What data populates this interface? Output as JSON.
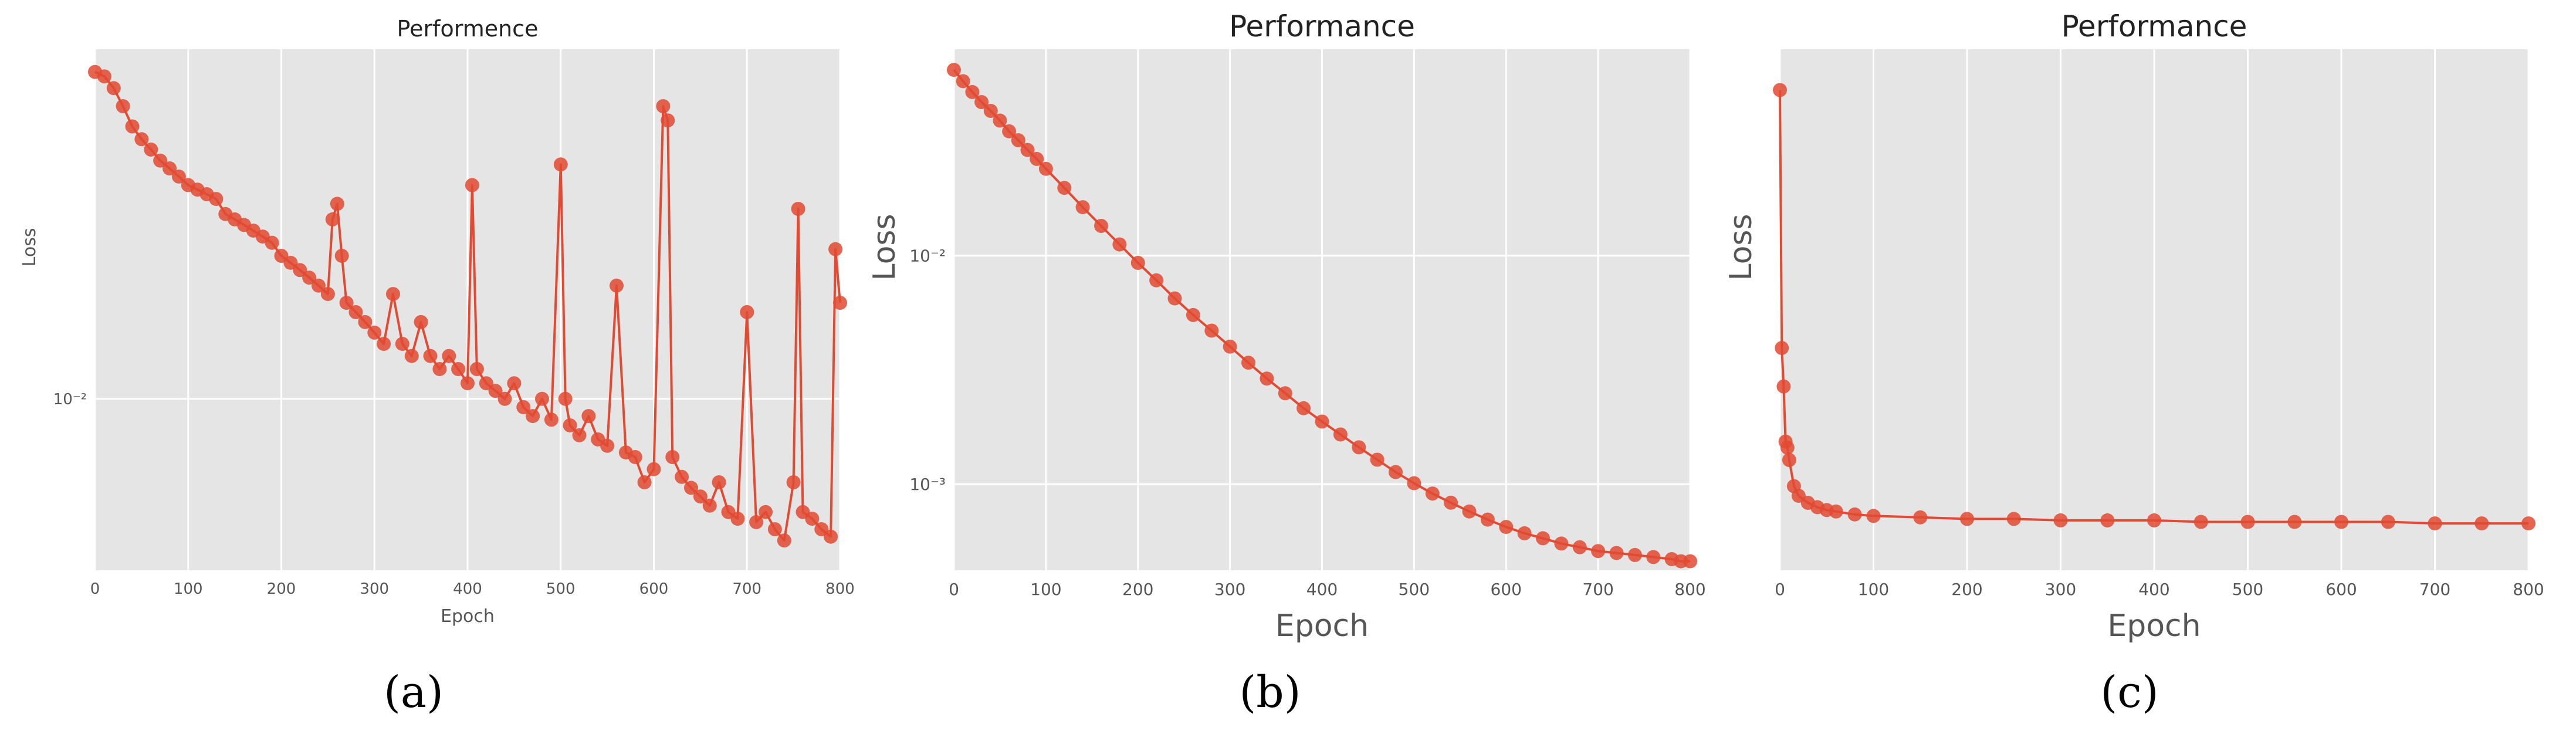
{
  "colors": {
    "series": "#e24a33",
    "plot_background": "#e5e5e5",
    "grid": "#ffffff"
  },
  "chart_data": [
    {
      "type": "line",
      "panel_label": "(a)",
      "title": "Performence",
      "xlabel": "Epoch",
      "ylabel": "Loss",
      "xlim": [
        0,
        800
      ],
      "ylim": [
        0.0035,
        0.085
      ],
      "yscale": "log",
      "grid": true,
      "x_ticks": [
        0,
        100,
        200,
        300,
        400,
        500,
        600,
        700,
        800
      ],
      "y_ticks": [
        {
          "value": 0.01,
          "label": "10⁻²"
        }
      ],
      "marker": "circle",
      "series": [
        {
          "x": [
            0,
            10,
            20,
            30,
            40,
            50,
            60,
            70,
            80,
            90,
            100,
            110,
            120,
            130,
            140,
            150,
            160,
            170,
            180,
            190,
            200,
            210,
            220,
            230,
            240,
            250,
            255,
            260,
            265,
            270,
            280,
            290,
            300,
            310,
            320,
            330,
            340,
            350,
            360,
            370,
            380,
            390,
            400,
            405,
            410,
            420,
            430,
            440,
            450,
            460,
            470,
            480,
            490,
            500,
            505,
            510,
            520,
            530,
            540,
            550,
            560,
            570,
            580,
            590,
            600,
            610,
            615,
            620,
            630,
            640,
            650,
            660,
            670,
            680,
            690,
            700,
            710,
            720,
            730,
            740,
            750,
            755,
            760,
            770,
            780,
            790,
            795,
            800
          ],
          "y": [
            0.074,
            0.072,
            0.067,
            0.06,
            0.053,
            0.049,
            0.046,
            0.043,
            0.041,
            0.039,
            0.037,
            0.036,
            0.035,
            0.034,
            0.031,
            0.03,
            0.029,
            0.028,
            0.027,
            0.026,
            0.024,
            0.023,
            0.022,
            0.021,
            0.02,
            0.019,
            0.03,
            0.033,
            0.024,
            0.018,
            0.017,
            0.016,
            0.015,
            0.014,
            0.019,
            0.014,
            0.013,
            0.016,
            0.013,
            0.012,
            0.013,
            0.012,
            0.011,
            0.037,
            0.012,
            0.011,
            0.0105,
            0.01,
            0.011,
            0.0095,
            0.009,
            0.01,
            0.0088,
            0.042,
            0.01,
            0.0085,
            0.008,
            0.009,
            0.0078,
            0.0075,
            0.02,
            0.0072,
            0.007,
            0.006,
            0.0065,
            0.06,
            0.055,
            0.007,
            0.0062,
            0.0058,
            0.0055,
            0.0052,
            0.006,
            0.005,
            0.0048,
            0.017,
            0.0047,
            0.005,
            0.0045,
            0.0042,
            0.006,
            0.032,
            0.005,
            0.0048,
            0.0045,
            0.0043,
            0.025,
            0.018
          ]
        }
      ]
    },
    {
      "type": "line",
      "panel_label": "(b)",
      "title": "Performance",
      "xlabel": "Epoch",
      "ylabel": "Loss",
      "xlim": [
        0,
        800
      ],
      "ylim": [
        0.00042,
        0.08
      ],
      "yscale": "log",
      "grid": true,
      "x_ticks": [
        0,
        100,
        200,
        300,
        400,
        500,
        600,
        700,
        800
      ],
      "y_ticks": [
        {
          "value": 0.01,
          "label": "10⁻²"
        },
        {
          "value": 0.001,
          "label": "10⁻³"
        }
      ],
      "marker": "circle",
      "series": [
        {
          "x": [
            0,
            10,
            20,
            30,
            40,
            50,
            60,
            70,
            80,
            90,
            100,
            120,
            140,
            160,
            180,
            200,
            220,
            240,
            260,
            280,
            300,
            320,
            340,
            360,
            380,
            400,
            420,
            440,
            460,
            480,
            500,
            520,
            540,
            560,
            580,
            600,
            620,
            640,
            660,
            680,
            700,
            720,
            740,
            760,
            780,
            790,
            800
          ],
          "y": [
            0.065,
            0.058,
            0.052,
            0.047,
            0.043,
            0.039,
            0.035,
            0.032,
            0.029,
            0.0265,
            0.024,
            0.0198,
            0.0163,
            0.0135,
            0.0112,
            0.0093,
            0.0078,
            0.0065,
            0.0055,
            0.0047,
            0.004,
            0.0034,
            0.0029,
            0.0025,
            0.00215,
            0.00188,
            0.00165,
            0.00145,
            0.00128,
            0.00113,
            0.00101,
            0.00091,
            0.00083,
            0.00076,
            0.0007,
            0.00065,
            0.00061,
            0.00058,
            0.00055,
            0.00053,
            0.00051,
            0.0005,
            0.00049,
            0.00048,
            0.00047,
            0.00046,
            0.00046
          ]
        }
      ]
    },
    {
      "type": "line",
      "panel_label": "(c)",
      "title": "Performance",
      "xlabel": "Epoch",
      "ylabel": "Loss",
      "xlim": [
        0,
        800
      ],
      "ylim": [
        0.02,
        0.09
      ],
      "yscale": "log",
      "grid": true,
      "x_ticks": [
        0,
        100,
        200,
        300,
        400,
        500,
        600,
        700,
        800
      ],
      "y_ticks": [],
      "marker": "circle",
      "series": [
        {
          "x": [
            0,
            2,
            4,
            6,
            8,
            10,
            15,
            20,
            30,
            40,
            50,
            60,
            80,
            100,
            150,
            200,
            250,
            300,
            350,
            400,
            450,
            500,
            550,
            600,
            650,
            700,
            750,
            800
          ],
          "y": [
            0.08,
            0.038,
            0.034,
            0.029,
            0.0285,
            0.0275,
            0.0255,
            0.0248,
            0.0243,
            0.024,
            0.0238,
            0.0237,
            0.0235,
            0.0234,
            0.0233,
            0.0232,
            0.0232,
            0.0231,
            0.0231,
            0.0231,
            0.023,
            0.023,
            0.023,
            0.023,
            0.023,
            0.0229,
            0.0229,
            0.0229
          ]
        }
      ]
    }
  ]
}
